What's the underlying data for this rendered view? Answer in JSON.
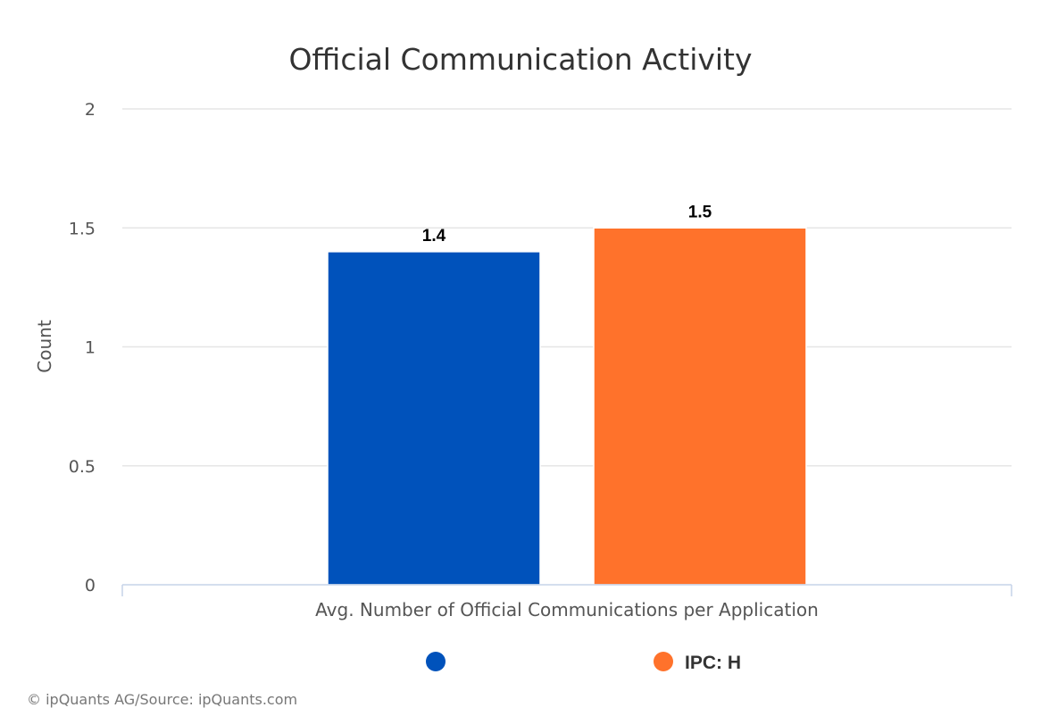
{
  "chart_data": {
    "type": "bar",
    "title": "Official Communication Activity",
    "categories": [
      "Avg. Number of Official Communications per Application"
    ],
    "xlabel": "Avg. Number of Official Communications per Application",
    "ylabel": "Count",
    "ylim": [
      0,
      2
    ],
    "yticks": [
      "0",
      "0.5",
      "1",
      "1.5",
      "2"
    ],
    "grid": true,
    "legend_position": "bottom",
    "series": [
      {
        "name": "",
        "values": [
          1.4
        ],
        "label": "1.4",
        "color": "#0052bb"
      },
      {
        "name": "IPC: H",
        "values": [
          1.5
        ],
        "label": "1.5",
        "color": "#ff722b"
      }
    ]
  },
  "credits": "© ipQuants AG/Source: ipQuants.com"
}
